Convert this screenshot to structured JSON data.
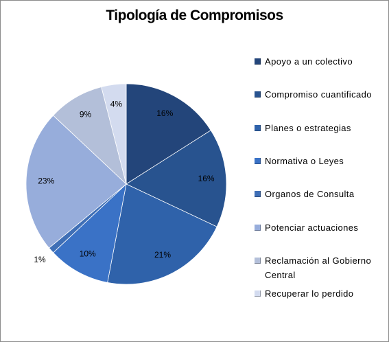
{
  "chart_data": {
    "type": "pie",
    "title": "Tipología de Compromisos",
    "categories": [
      "Apoyo a un colectivo",
      "Compromiso cuantificado",
      "Planes o estrategias",
      "Normativa o Leyes",
      "Organos de Consulta",
      "Potenciar actuaciones",
      "Reclamación al Gobierno Central",
      "Recuperar lo perdido"
    ],
    "values": [
      16,
      16,
      21,
      10,
      1,
      23,
      9,
      4
    ],
    "value_labels": [
      "16%",
      "16%",
      "21%",
      "10%",
      "1%",
      "23%",
      "9%",
      "4%"
    ],
    "colors": [
      "#23457a",
      "#28538f",
      "#2f62aa",
      "#3a72c6",
      "#3f6fb6",
      "#97addb",
      "#b3bfd9",
      "#d3dbef"
    ],
    "legend": "right"
  }
}
